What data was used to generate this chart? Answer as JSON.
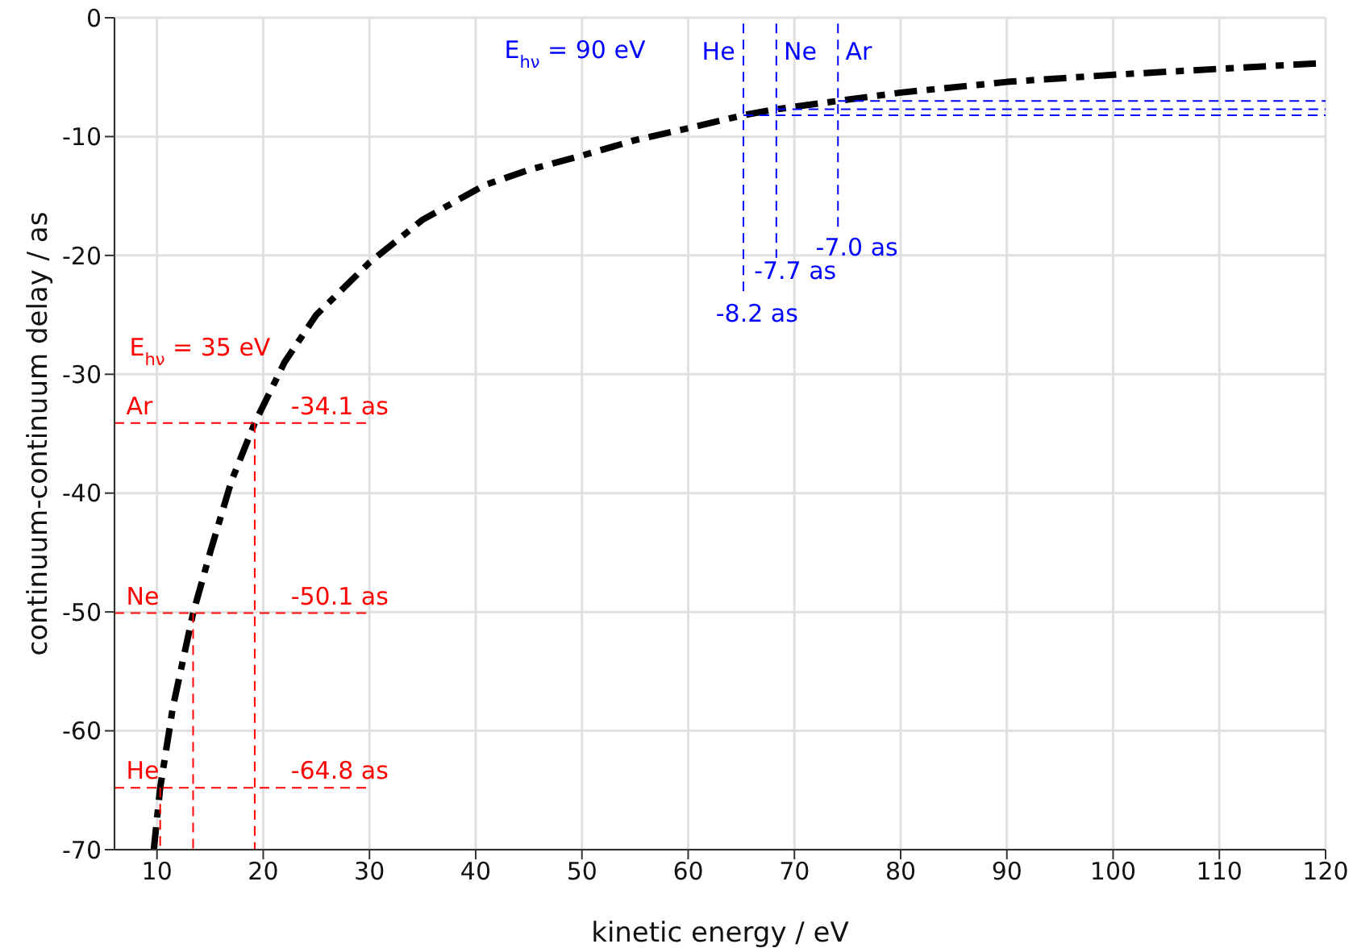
{
  "chart_data": {
    "type": "line",
    "xlabel": "kinetic energy / eV",
    "ylabel": "continuum-continuum delay / as",
    "xlim": [
      6,
      120
    ],
    "xticks": [
      10,
      20,
      30,
      40,
      50,
      60,
      70,
      80,
      90,
      100,
      110,
      120
    ],
    "ylim": [
      -70,
      0
    ],
    "yticks": [
      0,
      -10,
      -20,
      -30,
      -40,
      -50,
      -60,
      -70
    ],
    "grid": true,
    "line_style": "dashed",
    "series": [
      {
        "color": "#000000",
        "x": [
          9.7,
          10.3,
          11.5,
          13.4,
          15,
          17,
          19.2,
          22,
          25,
          30,
          35,
          40.8,
          45,
          50,
          55,
          60,
          65.2,
          68.3,
          74.1,
          80,
          90,
          100,
          110,
          120
        ],
        "values": [
          -70,
          -64.8,
          -58,
          -50.1,
          -45,
          -39,
          -34.1,
          -29,
          -25,
          -20.6,
          -17,
          -14.1,
          -12.8,
          -11.6,
          -10.3,
          -9.3,
          -8.2,
          -7.7,
          -7.0,
          -6.3,
          -5.4,
          -4.8,
          -4.3,
          -3.8
        ]
      },
      {
        "color": "#ff0000",
        "x": [
          6,
          30
        ],
        "values": [
          -34.1,
          -34.1
        ]
      },
      {
        "color": "#ff0000",
        "x": [
          19.2,
          19.2
        ],
        "values": [
          -34.1,
          -70
        ]
      },
      {
        "color": "#ff0000",
        "x": [
          6,
          30
        ],
        "values": [
          -50.1,
          -50.1
        ]
      },
      {
        "color": "#ff0000",
        "x": [
          13.4,
          13.4
        ],
        "values": [
          -50.1,
          -70
        ]
      },
      {
        "color": "#ff0000",
        "x": [
          6,
          30
        ],
        "values": [
          -64.8,
          -64.8
        ]
      },
      {
        "color": "#ff0000",
        "x": [
          10.3,
          10.3
        ],
        "values": [
          -64.8,
          -70
        ]
      },
      {
        "color": "#0000ff",
        "x": [
          65.2,
          65.2
        ],
        "values": [
          -0.5,
          -23.3
        ]
      },
      {
        "color": "#0000ff",
        "x": [
          68.3,
          68.3
        ],
        "values": [
          -0.5,
          -20.2
        ]
      },
      {
        "color": "#0000ff",
        "x": [
          74.1,
          74.1
        ],
        "values": [
          -0.5,
          -17.9
        ]
      },
      {
        "color": "#0000ff",
        "x": [
          65.2,
          120
        ],
        "values": [
          -8.2,
          -8.2
        ]
      },
      {
        "color": "#0000ff",
        "x": [
          68.3,
          120
        ],
        "values": [
          -7.7,
          -7.7
        ]
      },
      {
        "color": "#0000ff",
        "x": [
          74.1,
          120
        ],
        "values": [
          -7.0,
          -7.0
        ]
      }
    ],
    "annotations": [
      "E$_{hν}$ = 35 eV",
      "Ar",
      "-34.1 as",
      "Ne",
      "-50.1 as",
      "He",
      "-64.8 as",
      "E$_{hν}$ = 90 eV",
      "He",
      "Ne",
      "Ar",
      "-7.0 as",
      "-7.7 as",
      "-8.2 as"
    ]
  }
}
